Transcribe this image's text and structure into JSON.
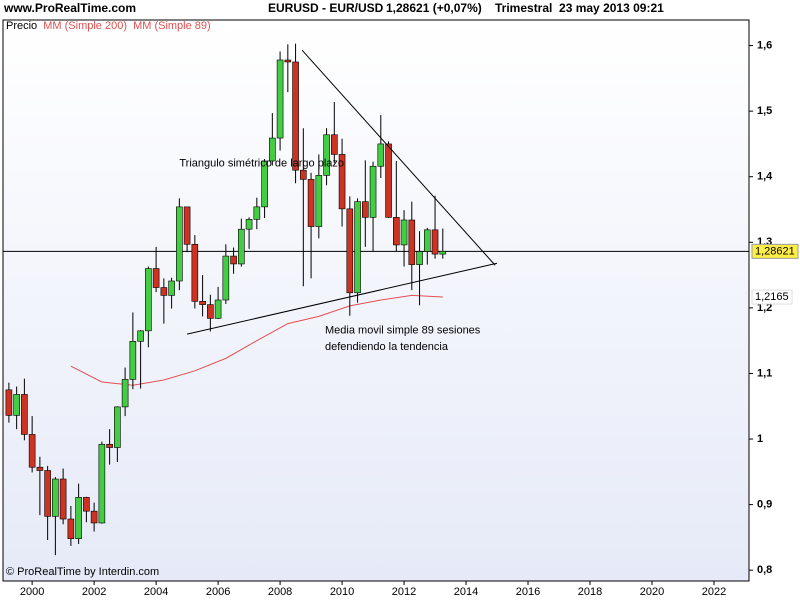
{
  "header": {
    "site": "www.ProRealTime.com",
    "symbol": "EURUSD - EUR/USD",
    "quote": "1,28621 (+0,07%)",
    "period": "Trimestral  23 may 2013 09:21"
  },
  "footer": "© ProRealTime by Interdin.com",
  "chart_data": {
    "type": "candlestick",
    "legend": [
      "Precio",
      "MM (Simple 200)",
      "MM (Simple 89)"
    ],
    "up_color": "#44cc44",
    "down_color": "#cc3322",
    "x": [
      1999.25,
      1999.5,
      1999.75,
      2000,
      2000.25,
      2000.5,
      2000.75,
      2001,
      2001.25,
      2001.5,
      2001.75,
      2002,
      2002.25,
      2002.5,
      2002.75,
      2003,
      2003.25,
      2003.5,
      2003.75,
      2004,
      2004.25,
      2004.5,
      2004.75,
      2005,
      2005.25,
      2005.5,
      2005.75,
      2006,
      2006.25,
      2006.5,
      2006.75,
      2007,
      2007.25,
      2007.5,
      2007.75,
      2008,
      2008.25,
      2008.5,
      2008.75,
      2009,
      2009.25,
      2009.5,
      2009.75,
      2010,
      2010.25,
      2010.5,
      2010.75,
      2011,
      2011.25,
      2011.5,
      2011.75,
      2012,
      2012.25,
      2012.5,
      2012.75,
      2013,
      2013.25
    ],
    "open": [
      1.075,
      1.036,
      1.068,
      1.007,
      0.957,
      0.952,
      0.882,
      0.939,
      0.878,
      0.848,
      0.911,
      0.89,
      0.872,
      0.992,
      0.987,
      1.049,
      1.091,
      1.149,
      1.165,
      1.26,
      1.231,
      1.219,
      1.241,
      1.354,
      1.297,
      1.21,
      1.205,
      1.184,
      1.212,
      1.279,
      1.267,
      1.32,
      1.335,
      1.354,
      1.424,
      1.459,
      1.578,
      1.575,
      1.41,
      1.396,
      1.324,
      1.402,
      1.464,
      1.434,
      1.351,
      1.223,
      1.362,
      1.338,
      1.416,
      1.45,
      1.338,
      1.296,
      1.334,
      1.266,
      1.286,
      1.319,
      1.282
    ],
    "high": [
      1.086,
      1.08,
      1.092,
      1.035,
      0.973,
      0.959,
      0.942,
      0.955,
      0.898,
      0.932,
      0.912,
      0.903,
      0.996,
      1.015,
      1.05,
      1.109,
      1.193,
      1.166,
      1.263,
      1.293,
      1.245,
      1.246,
      1.367,
      1.351,
      1.311,
      1.25,
      1.22,
      1.232,
      1.297,
      1.292,
      1.336,
      1.338,
      1.368,
      1.427,
      1.497,
      1.591,
      1.602,
      1.603,
      1.474,
      1.406,
      1.434,
      1.474,
      1.514,
      1.458,
      1.37,
      1.367,
      1.425,
      1.423,
      1.494,
      1.454,
      1.424,
      1.349,
      1.362,
      1.317,
      1.322,
      1.371,
      1.321
    ],
    "low": [
      1.025,
      1.015,
      0.998,
      0.949,
      0.884,
      0.846,
      0.823,
      0.87,
      0.837,
      0.84,
      0.873,
      0.859,
      0.871,
      0.961,
      0.965,
      1.035,
      1.076,
      1.077,
      1.14,
      1.224,
      1.176,
      1.199,
      1.227,
      1.285,
      1.199,
      1.187,
      1.164,
      1.183,
      1.206,
      1.252,
      1.263,
      1.29,
      1.32,
      1.337,
      1.417,
      1.44,
      1.529,
      1.39,
      1.233,
      1.245,
      1.306,
      1.387,
      1.421,
      1.324,
      1.188,
      1.208,
      1.293,
      1.286,
      1.398,
      1.337,
      1.286,
      1.263,
      1.227,
      1.204,
      1.266,
      1.275,
      1.275
    ],
    "close": [
      1.036,
      1.068,
      1.007,
      0.957,
      0.952,
      0.882,
      0.939,
      0.878,
      0.848,
      0.911,
      0.89,
      0.872,
      0.992,
      0.987,
      1.049,
      1.091,
      1.149,
      1.165,
      1.26,
      1.231,
      1.219,
      1.241,
      1.354,
      1.297,
      1.21,
      1.205,
      1.184,
      1.212,
      1.279,
      1.267,
      1.32,
      1.335,
      1.354,
      1.424,
      1.459,
      1.578,
      1.575,
      1.41,
      1.396,
      1.324,
      1.402,
      1.464,
      1.434,
      1.351,
      1.223,
      1.362,
      1.338,
      1.416,
      1.45,
      1.338,
      1.296,
      1.334,
      1.266,
      1.286,
      1.319,
      1.282,
      1.28621
    ],
    "price": {
      "value": 1.28621,
      "label": "1,28621"
    },
    "moving_average": {
      "color": "#e05050",
      "x": [
        2001.25,
        2002.25,
        2003.25,
        2004.25,
        2005.25,
        2006.25,
        2007.25,
        2008.25,
        2009.25,
        2010.25,
        2011.25,
        2012.25,
        2013.25
      ],
      "values": [
        1.111,
        1.087,
        1.082,
        1.09,
        1.104,
        1.123,
        1.15,
        1.176,
        1.187,
        1.203,
        1.212,
        1.219,
        1.2165
      ],
      "last": {
        "value": 1.2165,
        "label": "1,2165"
      }
    },
    "trendlines": [
      {
        "x": [
          2008.71,
          2014.94
        ],
        "y": [
          1.593,
          1.265
        ]
      },
      {
        "x": [
          2005.0,
          2015.0
        ],
        "y": [
          1.16,
          1.268
        ]
      }
    ],
    "annotations": [
      {
        "text": "Triangulo simétrico de largo plazo",
        "x": 2004.75,
        "y": 1.42
      },
      {
        "text": "Media movil simple 89 sesiones",
        "x": 2009.45,
        "y": 1.165
      },
      {
        "text": "defendiendo la tendencia",
        "x": 2009.45,
        "y": 1.14
      }
    ],
    "xlim": [
      1999.06,
      2023.13
    ],
    "xticks": [
      2000,
      2002,
      2004,
      2006,
      2008,
      2010,
      2012,
      2014,
      2016,
      2018,
      2020,
      2022
    ],
    "ylim": [
      0.7835,
      1.639
    ],
    "yticks": [
      {
        "value": 0.8,
        "label": "0,8"
      },
      {
        "value": 0.9,
        "label": "0,9"
      },
      1,
      {
        "value": 1.1,
        "label": "1,1"
      },
      {
        "value": 1.2,
        "label": "1,2"
      },
      {
        "value": 1.3,
        "label": "1,3"
      },
      {
        "value": 1.4,
        "label": "1,4"
      },
      {
        "value": 1.5,
        "label": "1,5"
      },
      {
        "value": 1.6,
        "label": "1,6"
      }
    ]
  }
}
